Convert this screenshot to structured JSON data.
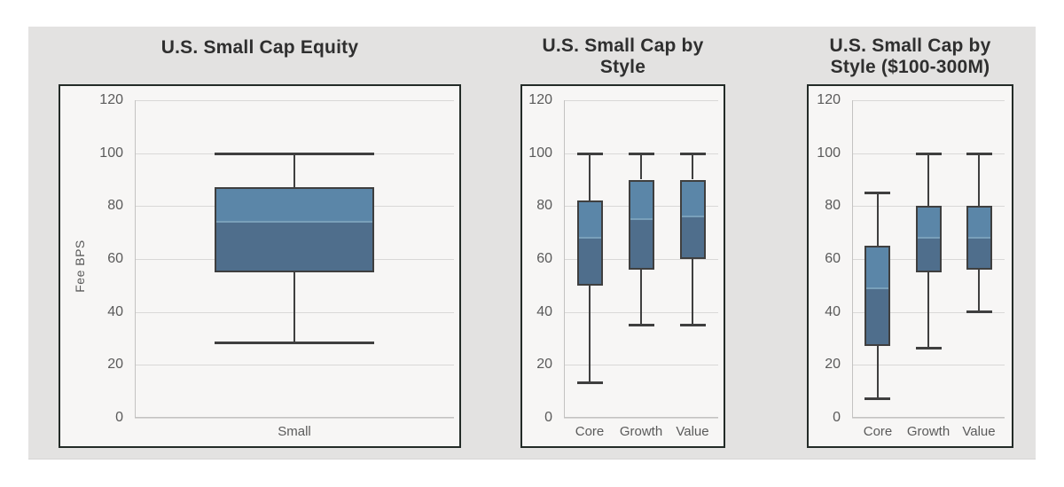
{
  "page": {
    "background": "#ffffff",
    "canvas_color": "#e3e2e1"
  },
  "colors": {
    "box_upper": "#5b86a8",
    "box_lower": "#4f6e8c",
    "median_line": "#79a0ba",
    "stroke": "#3f3f3f",
    "gridline": "#d9d8d7",
    "axis": "#c3c2c1",
    "tick_text": "#5a5a5a",
    "title_text": "#2f2f2f",
    "panel_bg": "#f7f6f5",
    "panel_border": "#232b27"
  },
  "chart_data": [
    {
      "type": "boxplot",
      "title": "U.S. Small Cap Equity",
      "title_lines": [
        "U.S. Small Cap Equity"
      ],
      "xlabel": "",
      "ylabel": "Fee BPS",
      "ylim": [
        0,
        120
      ],
      "yticks": [
        0,
        20,
        40,
        60,
        80,
        100,
        120
      ],
      "grid": "horizontal",
      "categories": [
        "Small"
      ],
      "series": [
        {
          "category": "Small",
          "min": 28,
          "q1": 55,
          "median": 74,
          "q3": 87,
          "max": 100
        }
      ]
    },
    {
      "type": "boxplot",
      "title": "U.S. Small Cap by Style",
      "title_lines": [
        "U.S. Small Cap by",
        "Style"
      ],
      "xlabel": "",
      "ylabel": "",
      "ylim": [
        0,
        120
      ],
      "yticks": [
        0,
        20,
        40,
        60,
        80,
        100,
        120
      ],
      "grid": "horizontal",
      "categories": [
        "Core",
        "Growth",
        "Value"
      ],
      "series": [
        {
          "category": "Core",
          "min": 13,
          "q1": 50,
          "median": 68,
          "q3": 82,
          "max": 100
        },
        {
          "category": "Growth",
          "min": 35,
          "q1": 56,
          "median": 75,
          "q3": 90,
          "max": 100
        },
        {
          "category": "Value",
          "min": 35,
          "q1": 60,
          "median": 76,
          "q3": 90,
          "max": 100
        }
      ]
    },
    {
      "type": "boxplot",
      "title": "U.S. Small Cap by Style ($100-300M)",
      "title_lines": [
        "U.S. Small Cap by",
        "Style ($100-300M)"
      ],
      "xlabel": "",
      "ylabel": "",
      "ylim": [
        0,
        120
      ],
      "yticks": [
        0,
        20,
        40,
        60,
        80,
        100,
        120
      ],
      "grid": "horizontal",
      "categories": [
        "Core",
        "Growth",
        "Value"
      ],
      "series": [
        {
          "category": "Core",
          "min": 7,
          "q1": 27,
          "median": 49,
          "q3": 65,
          "max": 85
        },
        {
          "category": "Growth",
          "min": 26,
          "q1": 55,
          "median": 68,
          "q3": 80,
          "max": 100
        },
        {
          "category": "Value",
          "min": 40,
          "q1": 56,
          "median": 68,
          "q3": 80,
          "max": 100
        }
      ]
    }
  ]
}
